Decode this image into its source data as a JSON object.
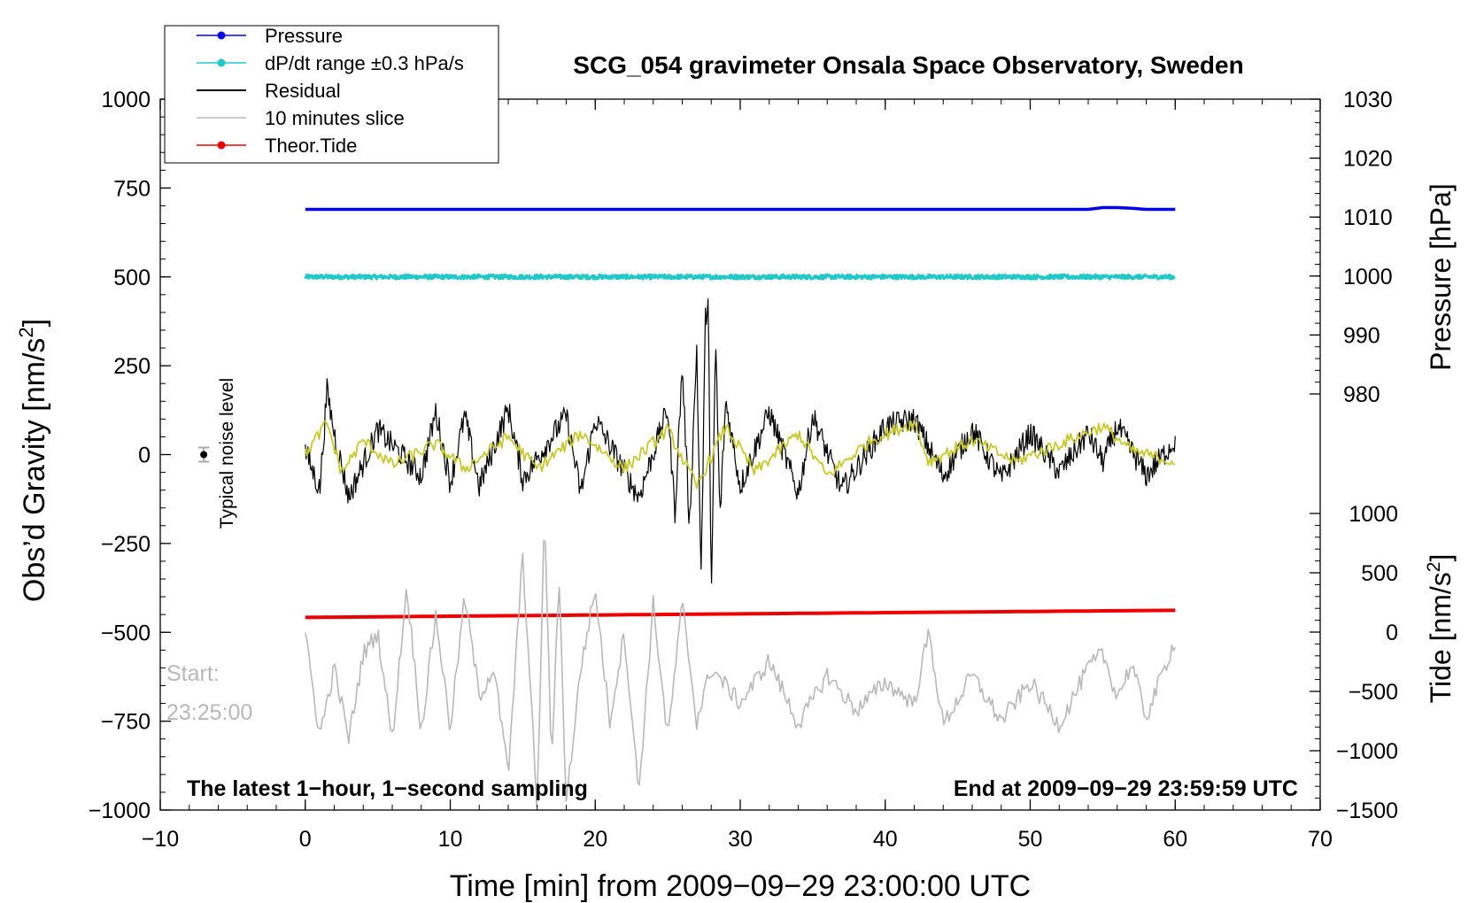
{
  "chart_data": {
    "type": "line",
    "title": "SCG_054 gravimeter Onsala Space Observatory, Sweden",
    "xlabel": "Time [min] from 2009−09−29 23:00:00 UTC",
    "ylabel_base": "Obs’d Gravity [nm/s",
    "ylabel_sup": "2",
    "ylabel_close": "]",
    "y2label": "Pressure [hPa]",
    "y3label_base": "Tide [nm/s",
    "y3label_sup": "2",
    "y3label_close": "]",
    "xlim": [
      -10,
      70
    ],
    "ylim": [
      -1000,
      1000
    ],
    "x_ticks": [
      -10,
      0,
      10,
      20,
      30,
      40,
      50,
      60,
      70
    ],
    "x_tick_labels": [
      "−10",
      "0",
      "10",
      "20",
      "30",
      "40",
      "50",
      "60",
      "70"
    ],
    "y_ticks": [
      1000,
      750,
      500,
      250,
      0,
      -250,
      -500,
      -750,
      -1000
    ],
    "y_tick_labels": [
      "1000",
      "750",
      "500",
      "250",
      "0",
      "−250",
      "−500",
      "−750",
      "−1000"
    ],
    "pressure_axis": {
      "range": [
        980,
        1030
      ],
      "ticks": [
        1030,
        1020,
        1010,
        1000,
        990,
        980
      ],
      "tick_labels": [
        "1030",
        "1020",
        "1010",
        "1000",
        "990",
        "980"
      ]
    },
    "tide_axis": {
      "range": [
        -1500,
        1000
      ],
      "ticks": [
        1000,
        500,
        0,
        -500,
        -1000,
        -1500
      ],
      "tick_labels": [
        "1000",
        "500",
        "0",
        "−500",
        "−1000",
        "−1500"
      ]
    },
    "legend": {
      "position": "top-left",
      "entries": [
        {
          "label": "Pressure",
          "color": "#0000ee",
          "marker": true
        },
        {
          "label": "dP/dt range ±0.3 hPa/s",
          "color": "#22c8c8",
          "marker": true
        },
        {
          "label": "Residual",
          "color": "#000000",
          "marker": false
        },
        {
          "label": "10 minutes slice",
          "color": "#b8b8b8",
          "marker": false
        },
        {
          "label": "Theor.Tide",
          "color": "#ee0000",
          "marker": true
        }
      ]
    },
    "series": [
      {
        "name": "Pressure",
        "color": "#0000ee",
        "axis": "pressure",
        "x": [
          0,
          54,
          55,
          56,
          57,
          58,
          60
        ],
        "values": [
          1011.3,
          1011.3,
          1011.6,
          1011.6,
          1011.5,
          1011.3,
          1011.3
        ]
      },
      {
        "name": "dP/dt range ±0.3 hPa/s",
        "color": "#22c8c8",
        "axis": "gravity",
        "x": [
          0,
          60
        ],
        "values": [
          500,
          500
        ]
      },
      {
        "name": "Theor.Tide",
        "color": "#ee0000",
        "axis": "gravity",
        "x": [
          0,
          60
        ],
        "values": [
          -458,
          -438
        ]
      },
      {
        "name": "Residual",
        "color": "#000000",
        "axis": "gravity",
        "x": [
          0,
          1,
          1.5,
          2,
          3,
          5,
          8,
          9,
          10,
          11,
          12,
          14,
          15,
          18,
          19,
          20,
          23,
          25,
          25.5,
          26,
          26.5,
          27,
          27.3,
          27.6,
          27.8,
          28,
          28.3,
          28.6,
          29,
          30,
          32,
          34,
          35,
          37,
          40,
          42,
          44,
          46,
          48,
          50,
          52,
          54,
          55,
          56,
          58,
          60
        ],
        "values": [
          10,
          -100,
          180,
          60,
          -120,
          70,
          -60,
          120,
          -80,
          110,
          -90,
          130,
          -70,
          110,
          -110,
          100,
          -120,
          130,
          -160,
          250,
          -200,
          300,
          -350,
          380,
          450,
          -440,
          330,
          -180,
          150,
          -90,
          120,
          -110,
          110,
          -100,
          80,
          100,
          -60,
          70,
          -70,
          60,
          -50,
          60,
          -20,
          80,
          -60,
          40
        ]
      },
      {
        "name": "Residual (filtered)",
        "color": "#c8c82a",
        "axis": "gravity",
        "x": [
          0,
          1.5,
          2.5,
          4,
          6,
          9,
          11,
          14,
          16,
          19,
          22,
          25,
          27,
          29,
          31,
          34,
          36,
          39,
          42,
          43,
          46,
          49,
          52,
          55,
          57,
          60
        ],
        "values": [
          0,
          90,
          -50,
          40,
          -30,
          30,
          -40,
          50,
          -40,
          60,
          -40,
          70,
          -90,
          80,
          -50,
          60,
          -60,
          40,
          90,
          -20,
          40,
          -20,
          30,
          80,
          10,
          -20
        ]
      },
      {
        "name": "10 minutes slice",
        "color": "#b8b8b8",
        "axis": "gravity",
        "x": [
          0,
          1,
          2,
          3,
          4,
          5,
          6,
          7,
          8,
          9,
          10,
          11,
          12,
          13,
          14,
          15,
          16,
          16.5,
          17,
          17.5,
          18,
          19,
          20,
          21,
          22,
          23,
          24,
          25,
          26,
          27,
          28,
          30,
          32,
          34,
          36,
          38,
          40,
          42,
          43,
          44,
          46,
          48,
          50,
          52,
          54,
          55,
          56,
          57,
          58,
          60
        ],
        "values": [
          -510,
          -790,
          -600,
          -800,
          -560,
          -500,
          -800,
          -370,
          -780,
          -450,
          -770,
          -400,
          -680,
          -600,
          -900,
          -280,
          -1000,
          -160,
          -880,
          -330,
          -980,
          -600,
          -380,
          -750,
          -500,
          -950,
          -420,
          -800,
          -420,
          -750,
          -600,
          -700,
          -580,
          -760,
          -620,
          -720,
          -640,
          -700,
          -500,
          -760,
          -620,
          -750,
          -640,
          -760,
          -600,
          -560,
          -680,
          -590,
          -740,
          -520
        ]
      }
    ],
    "annotations": {
      "start_label_1": "Start:",
      "start_label_2": "23:25:00",
      "noise_label": "Typical noise level",
      "noise_value": 0,
      "noise_errorbar": [
        -20,
        20
      ],
      "bottom_left": "The latest 1−hour, 1−second sampling",
      "bottom_right": "End at 2009−09−29 23:59:59 UTC"
    }
  }
}
